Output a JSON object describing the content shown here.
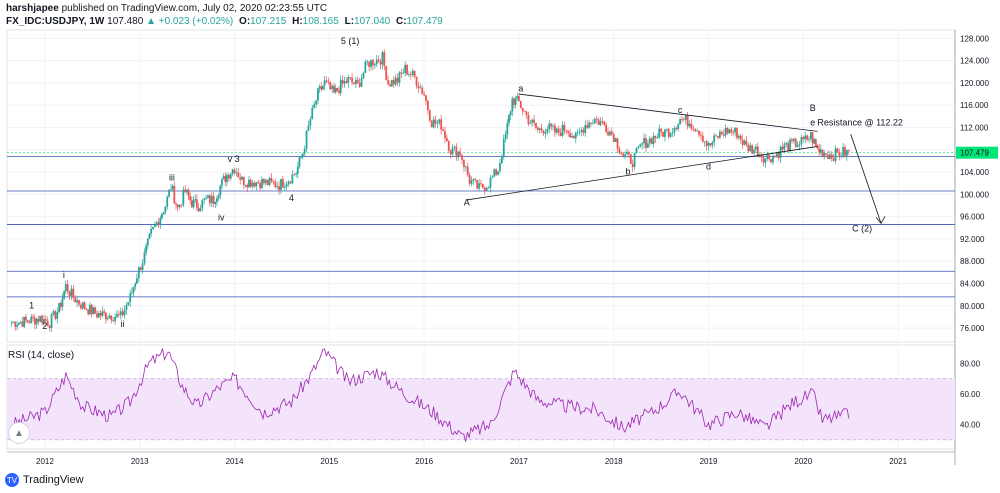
{
  "header": {
    "publisher": "harshjapee",
    "published_text": "published on TradingView.com, July 02, 2020 02:23:55 UTC",
    "symbol": "FX_IDC:USDJPY, 1W",
    "last": "107.480",
    "change": "▲ +0.023 (+0.02%)",
    "o_label": "O:",
    "o_value": "107.215",
    "h_label": "H:",
    "h_value": "108.165",
    "l_label": "L:",
    "l_value": "107.040",
    "c_label": "C:",
    "c_value": "107.479"
  },
  "rsi_label": "RSI (14, close)",
  "logo_text": "TradingView",
  "colors": {
    "up": "#26a69a",
    "down": "#ef5350",
    "hline": "#3f51b5",
    "rsi": "#9c27b0",
    "rsi_band": "#f3e3fb",
    "price_tag": "#00e676"
  },
  "chart_data": [
    {
      "type": "candlestick",
      "title": "",
      "x_ticks": [
        "2012",
        "2013",
        "2014",
        "2015",
        "2016",
        "2017",
        "2018",
        "2019",
        "2020",
        "2021"
      ],
      "y_ticks": [
        "128.000",
        "124.000",
        "120.000",
        "116.000",
        "112.000",
        "108.000",
        "104.000",
        "100.000",
        "96.000",
        "92.000",
        "88.000",
        "84.000",
        "80.000",
        "76.000"
      ],
      "ylim": [
        73.5,
        129.5
      ],
      "xlim": [
        2011.6,
        2021.6
      ],
      "last_price_tag": "107.479",
      "horizontal_levels": [
        106.8,
        100.6,
        94.6,
        86.2,
        81.6
      ],
      "closes": [
        [
          2011.65,
          77.0
        ],
        [
          2011.8,
          77.2
        ],
        [
          2011.95,
          77.8
        ],
        [
          2012.05,
          77.0
        ],
        [
          2012.15,
          79.5
        ],
        [
          2012.22,
          83.5
        ],
        [
          2012.3,
          81.5
        ],
        [
          2012.4,
          80.0
        ],
        [
          2012.55,
          78.5
        ],
        [
          2012.7,
          78.3
        ],
        [
          2012.8,
          78.0
        ],
        [
          2012.9,
          81.5
        ],
        [
          2012.97,
          85.5
        ],
        [
          2013.05,
          89.0
        ],
        [
          2013.12,
          93.0
        ],
        [
          2013.2,
          95.5
        ],
        [
          2013.27,
          98.0
        ],
        [
          2013.33,
          101.5
        ],
        [
          2013.4,
          97.5
        ],
        [
          2013.48,
          100.5
        ],
        [
          2013.55,
          98.5
        ],
        [
          2013.62,
          98.0
        ],
        [
          2013.7,
          99.0
        ],
        [
          2013.78,
          99.0
        ],
        [
          2013.85,
          101.5
        ],
        [
          2013.92,
          103.5
        ],
        [
          2014.0,
          104.8
        ],
        [
          2014.08,
          102.5
        ],
        [
          2014.17,
          102.3
        ],
        [
          2014.27,
          102.2
        ],
        [
          2014.37,
          102.0
        ],
        [
          2014.47,
          101.7
        ],
        [
          2014.57,
          102.7
        ],
        [
          2014.65,
          104.0
        ],
        [
          2014.72,
          107.5
        ],
        [
          2014.8,
          113.5
        ],
        [
          2014.88,
          118.0
        ],
        [
          2014.95,
          120.0
        ],
        [
          2015.05,
          118.0
        ],
        [
          2015.12,
          119.5
        ],
        [
          2015.2,
          120.5
        ],
        [
          2015.3,
          119.5
        ],
        [
          2015.4,
          123.5
        ],
        [
          2015.48,
          124.0
        ],
        [
          2015.56,
          124.5
        ],
        [
          2015.62,
          120.0
        ],
        [
          2015.72,
          120.5
        ],
        [
          2015.8,
          122.5
        ],
        [
          2015.9,
          121.0
        ],
        [
          2016.0,
          118.0
        ],
        [
          2016.08,
          113.0
        ],
        [
          2016.18,
          112.5
        ],
        [
          2016.28,
          108.0
        ],
        [
          2016.38,
          107.5
        ],
        [
          2016.48,
          102.5
        ],
        [
          2016.58,
          101.0
        ],
        [
          2016.68,
          102.0
        ],
        [
          2016.78,
          104.5
        ],
        [
          2016.86,
          110.5
        ],
        [
          2016.93,
          117.0
        ],
        [
          2017.0,
          116.5
        ],
        [
          2017.1,
          113.5
        ],
        [
          2017.2,
          111.5
        ],
        [
          2017.3,
          112.0
        ],
        [
          2017.4,
          111.0
        ],
        [
          2017.5,
          112.0
        ],
        [
          2017.6,
          110.0
        ],
        [
          2017.7,
          112.5
        ],
        [
          2017.8,
          113.5
        ],
        [
          2017.9,
          112.5
        ],
        [
          2018.0,
          110.5
        ],
        [
          2018.1,
          107.0
        ],
        [
          2018.2,
          106.0
        ],
        [
          2018.3,
          109.0
        ],
        [
          2018.4,
          110.0
        ],
        [
          2018.5,
          111.0
        ],
        [
          2018.6,
          111.5
        ],
        [
          2018.7,
          113.5
        ],
        [
          2018.8,
          113.0
        ],
        [
          2018.9,
          111.5
        ],
        [
          2019.0,
          108.5
        ],
        [
          2019.1,
          110.5
        ],
        [
          2019.2,
          111.5
        ],
        [
          2019.3,
          111.0
        ],
        [
          2019.4,
          108.5
        ],
        [
          2019.5,
          108.0
        ],
        [
          2019.6,
          106.5
        ],
        [
          2019.7,
          107.0
        ],
        [
          2019.8,
          108.5
        ],
        [
          2019.9,
          109.0
        ],
        [
          2020.0,
          109.5
        ],
        [
          2020.08,
          110.5
        ],
        [
          2020.15,
          108.0
        ],
        [
          2020.22,
          107.5
        ],
        [
          2020.3,
          107.0
        ],
        [
          2020.4,
          107.5
        ],
        [
          2020.5,
          107.5
        ]
      ],
      "labels": [
        {
          "text": "1",
          "x": 2011.86,
          "y": 79.5
        },
        {
          "text": "2",
          "x": 2012.0,
          "y": 75.8
        },
        {
          "text": "i",
          "x": 2012.2,
          "y": 85.0
        },
        {
          "text": "ii",
          "x": 2012.82,
          "y": 76.2
        },
        {
          "text": "iii",
          "x": 2013.34,
          "y": 102.5
        },
        {
          "text": "iv",
          "x": 2013.86,
          "y": 95.3
        },
        {
          "text": "v 3",
          "x": 2013.99,
          "y": 105.8
        },
        {
          "text": "4",
          "x": 2014.6,
          "y": 98.8
        },
        {
          "text": "5 (1)",
          "x": 2015.22,
          "y": 127.0
        },
        {
          "text": "A",
          "x": 2016.45,
          "y": 98.0
        },
        {
          "text": "a",
          "x": 2017.02,
          "y": 118.5
        },
        {
          "text": "b",
          "x": 2018.15,
          "y": 103.6
        },
        {
          "text": "c",
          "x": 2018.7,
          "y": 114.6
        },
        {
          "text": "d",
          "x": 2019.0,
          "y": 104.5
        },
        {
          "text": "B",
          "x": 2020.1,
          "y": 115.0
        },
        {
          "text": "e",
          "x": 2020.1,
          "y": 112.4
        },
        {
          "text": "Resistance @ 112.22",
          "x": 2020.6,
          "y": 112.4
        },
        {
          "text": "C (2)",
          "x": 2020.62,
          "y": 93.3
        }
      ],
      "trendlines": [
        {
          "from": [
            2017.0,
            118.0
          ],
          "to": [
            2020.15,
            111.3
          ]
        },
        {
          "from": [
            2016.45,
            99.0
          ],
          "to": [
            2020.15,
            108.6
          ]
        },
        {
          "from": [
            2020.5,
            110.8
          ],
          "to": [
            2020.82,
            94.8
          ]
        }
      ]
    },
    {
      "type": "line",
      "title": "RSI (14, close)",
      "y_ticks": [
        "80.00",
        "60.00",
        "40.00"
      ],
      "ylim": [
        24,
        92
      ],
      "band": [
        30,
        70
      ],
      "x": [
        2011.65,
        2012.0,
        2012.22,
        2012.4,
        2012.7,
        2012.9,
        2013.1,
        2013.3,
        2013.45,
        2013.6,
        2013.85,
        2014.0,
        2014.3,
        2014.6,
        2014.8,
        2014.95,
        2015.2,
        2015.5,
        2015.8,
        2016.1,
        2016.4,
        2016.7,
        2016.95,
        2017.2,
        2017.5,
        2017.8,
        2018.1,
        2018.4,
        2018.7,
        2019.0,
        2019.3,
        2019.6,
        2019.9,
        2020.1,
        2020.2,
        2020.35,
        2020.5
      ],
      "values": [
        40,
        48,
        72,
        52,
        45,
        55,
        80,
        88,
        65,
        52,
        65,
        70,
        48,
        55,
        72,
        88,
        68,
        75,
        60,
        48,
        32,
        40,
        75,
        56,
        52,
        50,
        38,
        48,
        62,
        40,
        48,
        38,
        55,
        60,
        43,
        45,
        47
      ]
    }
  ]
}
